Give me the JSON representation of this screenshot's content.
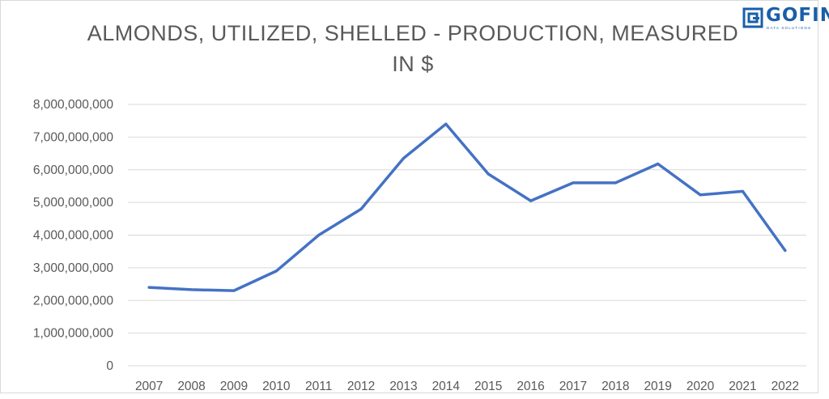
{
  "logo": {
    "name": "GOFIN",
    "tagline": "DATA SOLUTIONS"
  },
  "chart_data": {
    "type": "line",
    "title": "ALMONDS, UTILIZED, SHELLED - PRODUCTION, MEASURED IN $",
    "title_lines": [
      "ALMONDS, UTILIZED, SHELLED - PRODUCTION, MEASURED",
      "IN $"
    ],
    "categories": [
      "2007",
      "2008",
      "2009",
      "2010",
      "2011",
      "2012",
      "2013",
      "2014",
      "2015",
      "2016",
      "2017",
      "2018",
      "2019",
      "2020",
      "2021",
      "2022"
    ],
    "values": [
      2400000000,
      2330000000,
      2300000000,
      2900000000,
      4000000000,
      4800000000,
      6350000000,
      7400000000,
      5870000000,
      5050000000,
      5600000000,
      5600000000,
      6180000000,
      5230000000,
      5340000000,
      3530000000
    ],
    "y_ticks": [
      "0",
      "1,000,000,000",
      "2,000,000,000",
      "3,000,000,000",
      "4,000,000,000",
      "5,000,000,000",
      "6,000,000,000",
      "7,000,000,000",
      "8,000,000,000"
    ],
    "ylim": [
      0,
      8000000000
    ],
    "xlabel": "",
    "ylabel": "",
    "grid": true,
    "legend": "none",
    "line_color": "#4472c4",
    "grid_color": "#d9d9d9"
  }
}
